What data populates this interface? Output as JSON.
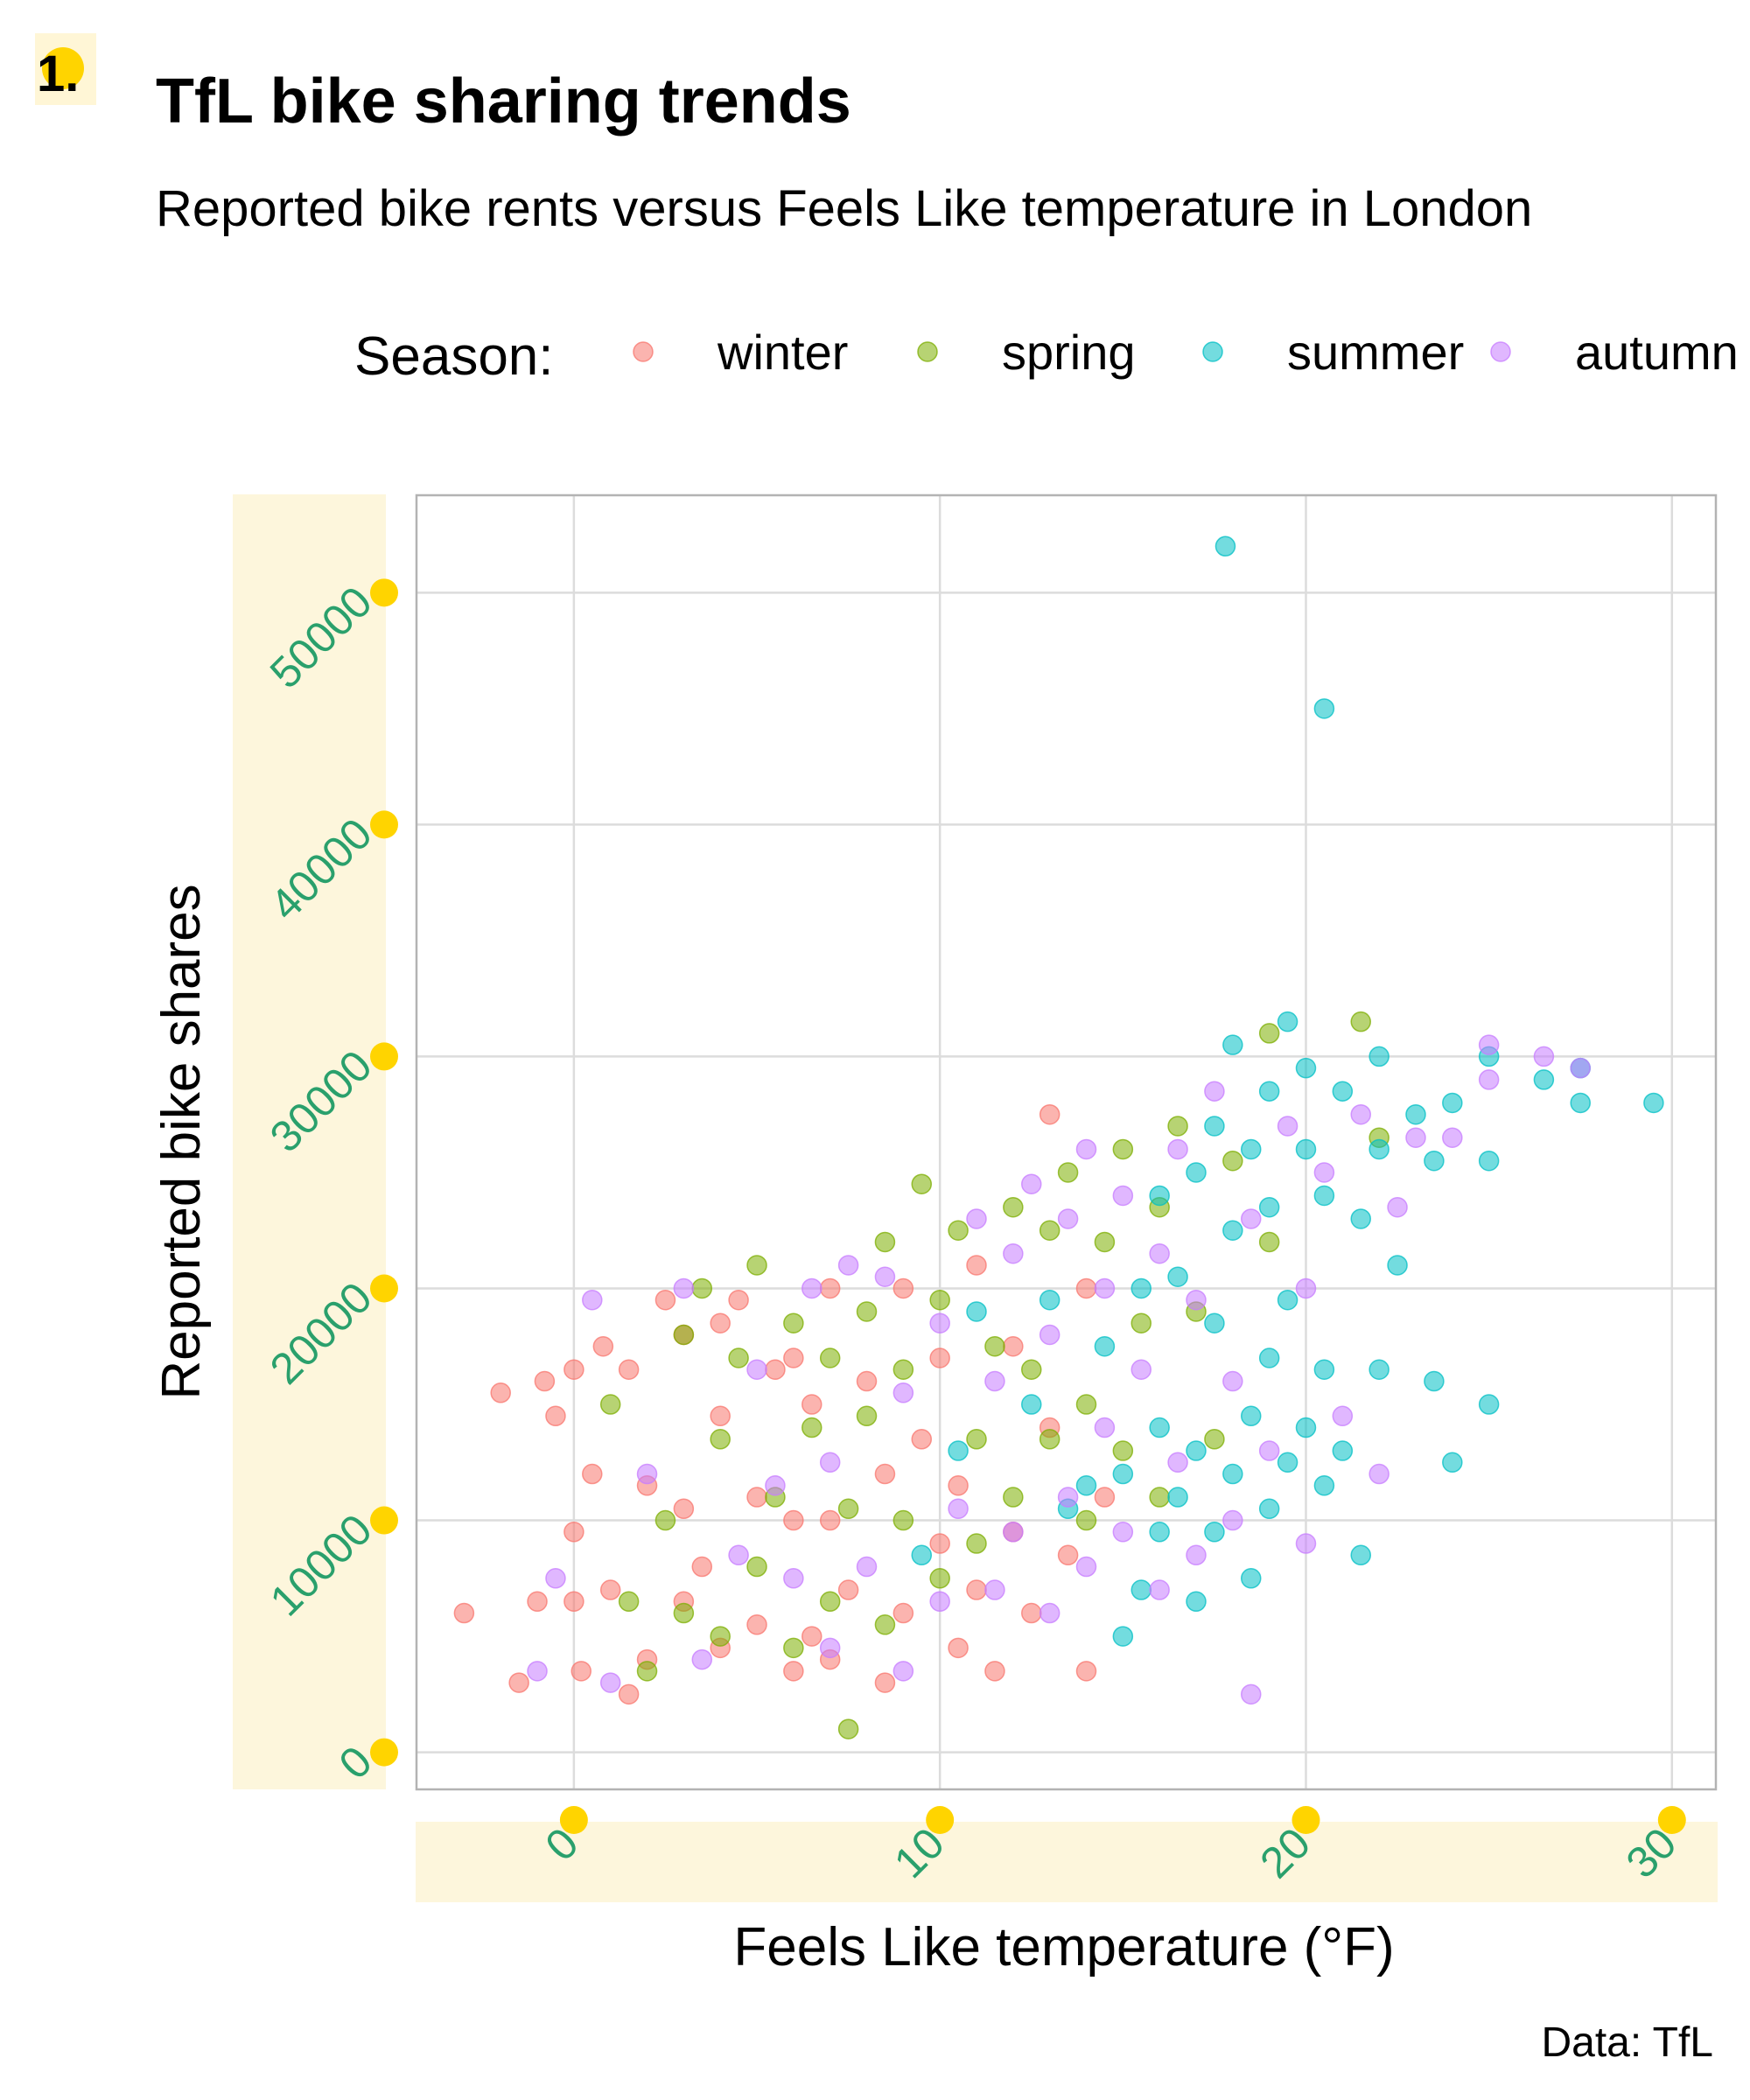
{
  "badge": "1.",
  "chart_data": {
    "type": "scatter",
    "title": "TfL bike sharing trends",
    "subtitle": "Reported bike rents versus Feels Like temperature in London",
    "xlabel": "Feels Like temperature (°F)",
    "ylabel": "Reported bike shares",
    "caption": "Data: TfL",
    "xlim": [
      -4.3,
      31.2
    ],
    "ylim": [
      -1600,
      54200
    ],
    "x_ticks": [
      0,
      10,
      20,
      30
    ],
    "y_ticks": [
      0,
      10000,
      20000,
      30000,
      40000,
      50000
    ],
    "grid": true,
    "legend": {
      "title": "Season:",
      "placement": "top",
      "entries": [
        "winter",
        "spring",
        "summer",
        "autumn"
      ]
    },
    "series": [
      {
        "name": "winter",
        "color": "#f8766d",
        "points": [
          [
            -3,
            6000
          ],
          [
            -2,
            15500
          ],
          [
            -1.5,
            3000
          ],
          [
            -1,
            6500
          ],
          [
            -0.8,
            16000
          ],
          [
            -0.5,
            14500
          ],
          [
            0,
            9500
          ],
          [
            0,
            6500
          ],
          [
            0,
            16500
          ],
          [
            0.2,
            3500
          ],
          [
            0.5,
            12000
          ],
          [
            0.8,
            17500
          ],
          [
            1,
            7000
          ],
          [
            1.5,
            2500
          ],
          [
            1.5,
            16500
          ],
          [
            2,
            4000
          ],
          [
            2,
            11500
          ],
          [
            2.5,
            19500
          ],
          [
            3,
            6500
          ],
          [
            3,
            10500
          ],
          [
            3,
            18000
          ],
          [
            3.5,
            8000
          ],
          [
            4,
            4500
          ],
          [
            4,
            14500
          ],
          [
            4,
            18500
          ],
          [
            4.5,
            19500
          ],
          [
            5,
            5500
          ],
          [
            5,
            11000
          ],
          [
            5.5,
            16500
          ],
          [
            6,
            3500
          ],
          [
            6,
            10000
          ],
          [
            6,
            17000
          ],
          [
            6.5,
            5000
          ],
          [
            6.5,
            15000
          ],
          [
            7,
            4000
          ],
          [
            7,
            10000
          ],
          [
            7,
            20000
          ],
          [
            7.5,
            7000
          ],
          [
            8,
            16000
          ],
          [
            8.5,
            3000
          ],
          [
            8.5,
            12000
          ],
          [
            9,
            6000
          ],
          [
            9,
            20000
          ],
          [
            9.5,
            13500
          ],
          [
            10,
            9000
          ],
          [
            10,
            17000
          ],
          [
            10.5,
            4500
          ],
          [
            10.5,
            11500
          ],
          [
            11,
            7000
          ],
          [
            11,
            21000
          ],
          [
            11.5,
            3500
          ],
          [
            12,
            9500
          ],
          [
            12,
            17500
          ],
          [
            12.5,
            6000
          ],
          [
            13,
            27500
          ],
          [
            13,
            14000
          ],
          [
            13.5,
            8500
          ],
          [
            14,
            20000
          ],
          [
            14,
            3500
          ],
          [
            14.5,
            11000
          ]
        ]
      },
      {
        "name": "spring",
        "color": "#7cae00",
        "points": [
          [
            1,
            15000
          ],
          [
            1.5,
            6500
          ],
          [
            2,
            3500
          ],
          [
            2.5,
            10000
          ],
          [
            3,
            6000
          ],
          [
            3,
            18000
          ],
          [
            3.5,
            20000
          ],
          [
            4,
            5000
          ],
          [
            4,
            13500
          ],
          [
            4.5,
            17000
          ],
          [
            5,
            8000
          ],
          [
            5,
            21000
          ],
          [
            5.5,
            11000
          ],
          [
            6,
            4500
          ],
          [
            6,
            18500
          ],
          [
            6.5,
            14000
          ],
          [
            7,
            6500
          ],
          [
            7,
            17000
          ],
          [
            7.5,
            1000
          ],
          [
            7.5,
            10500
          ],
          [
            8,
            14500
          ],
          [
            8,
            19000
          ],
          [
            8.5,
            5500
          ],
          [
            8.5,
            22000
          ],
          [
            9,
            10000
          ],
          [
            9,
            16500
          ],
          [
            9.5,
            24500
          ],
          [
            10,
            7500
          ],
          [
            10,
            19500
          ],
          [
            10.5,
            22500
          ],
          [
            11,
            13500
          ],
          [
            11,
            9000
          ],
          [
            11.5,
            17500
          ],
          [
            12,
            23500
          ],
          [
            12,
            11000
          ],
          [
            12.5,
            16500
          ],
          [
            13,
            22500
          ],
          [
            13,
            13500
          ],
          [
            13.5,
            25000
          ],
          [
            14,
            10000
          ],
          [
            14,
            15000
          ],
          [
            14.5,
            22000
          ],
          [
            15,
            26000
          ],
          [
            15,
            13000
          ],
          [
            15.5,
            18500
          ],
          [
            16,
            23500
          ],
          [
            16,
            11000
          ],
          [
            16.5,
            27000
          ],
          [
            17,
            19000
          ],
          [
            17.5,
            13500
          ],
          [
            18,
            25500
          ],
          [
            19,
            31000
          ],
          [
            19,
            22000
          ],
          [
            21.5,
            31500
          ],
          [
            22,
            26500
          ]
        ]
      },
      {
        "name": "summer",
        "color": "#00bfc4",
        "points": [
          [
            9.5,
            8500
          ],
          [
            10.5,
            13000
          ],
          [
            11,
            19000
          ],
          [
            12.5,
            15000
          ],
          [
            13,
            19500
          ],
          [
            13.5,
            10500
          ],
          [
            14,
            11500
          ],
          [
            14.5,
            17500
          ],
          [
            15,
            5000
          ],
          [
            15,
            12000
          ],
          [
            15.5,
            7000
          ],
          [
            15.5,
            20000
          ],
          [
            16,
            9500
          ],
          [
            16,
            14000
          ],
          [
            16,
            24000
          ],
          [
            16.5,
            11000
          ],
          [
            16.5,
            20500
          ],
          [
            17,
            6500
          ],
          [
            17,
            13000
          ],
          [
            17,
            25000
          ],
          [
            17.5,
            9500
          ],
          [
            17.5,
            18500
          ],
          [
            17.5,
            27000
          ],
          [
            17.8,
            52000
          ],
          [
            18,
            12000
          ],
          [
            18,
            22500
          ],
          [
            18,
            30500
          ],
          [
            18.5,
            7500
          ],
          [
            18.5,
            14500
          ],
          [
            18.5,
            26000
          ],
          [
            19,
            10500
          ],
          [
            19,
            17000
          ],
          [
            19,
            23500
          ],
          [
            19,
            28500
          ],
          [
            19.5,
            12500
          ],
          [
            19.5,
            19500
          ],
          [
            19.5,
            31500
          ],
          [
            20,
            14000
          ],
          [
            20,
            26000
          ],
          [
            20,
            29500
          ],
          [
            20.5,
            45000
          ],
          [
            20.5,
            11500
          ],
          [
            20.5,
            16500
          ],
          [
            20.5,
            24000
          ],
          [
            21,
            13000
          ],
          [
            21,
            28500
          ],
          [
            21.5,
            8500
          ],
          [
            21.5,
            23000
          ],
          [
            22,
            16500
          ],
          [
            22,
            26000
          ],
          [
            22,
            30000
          ],
          [
            22.5,
            21000
          ],
          [
            23,
            27500
          ],
          [
            23.5,
            16000
          ],
          [
            23.5,
            25500
          ],
          [
            24,
            12500
          ],
          [
            24,
            28000
          ],
          [
            25,
            15000
          ],
          [
            25,
            25500
          ],
          [
            25,
            30000
          ],
          [
            26.5,
            29000
          ],
          [
            27.5,
            28000
          ],
          [
            27.5,
            29500
          ],
          [
            29.5,
            28000
          ]
        ]
      },
      {
        "name": "autumn",
        "color": "#c77cff",
        "points": [
          [
            -1,
            3500
          ],
          [
            -0.5,
            7500
          ],
          [
            0.5,
            19500
          ],
          [
            1,
            3000
          ],
          [
            2,
            12000
          ],
          [
            3,
            20000
          ],
          [
            3.5,
            4000
          ],
          [
            4.5,
            8500
          ],
          [
            5,
            16500
          ],
          [
            5.5,
            11500
          ],
          [
            6,
            7500
          ],
          [
            6.5,
            20000
          ],
          [
            7,
            4500
          ],
          [
            7,
            12500
          ],
          [
            7.5,
            21000
          ],
          [
            8,
            8000
          ],
          [
            8.5,
            20500
          ],
          [
            9,
            3500
          ],
          [
            9,
            15500
          ],
          [
            10,
            6500
          ],
          [
            10,
            18500
          ],
          [
            10.5,
            10500
          ],
          [
            11,
            23000
          ],
          [
            11.5,
            7000
          ],
          [
            11.5,
            16000
          ],
          [
            12,
            9500
          ],
          [
            12,
            21500
          ],
          [
            12.5,
            24500
          ],
          [
            13,
            6000
          ],
          [
            13,
            18000
          ],
          [
            13.5,
            11000
          ],
          [
            13.5,
            23000
          ],
          [
            14,
            8000
          ],
          [
            14,
            26000
          ],
          [
            14.5,
            14000
          ],
          [
            14.5,
            20000
          ],
          [
            15,
            9500
          ],
          [
            15,
            24000
          ],
          [
            15.5,
            16500
          ],
          [
            16,
            7000
          ],
          [
            16,
            21500
          ],
          [
            16.5,
            12500
          ],
          [
            16.5,
            26000
          ],
          [
            17,
            8500
          ],
          [
            17,
            19500
          ],
          [
            17.5,
            28500
          ],
          [
            18,
            10000
          ],
          [
            18,
            16000
          ],
          [
            18.5,
            2500
          ],
          [
            18.5,
            23000
          ],
          [
            19,
            13000
          ],
          [
            19.5,
            27000
          ],
          [
            20,
            9000
          ],
          [
            20,
            20000
          ],
          [
            20.5,
            25000
          ],
          [
            21,
            14500
          ],
          [
            21.5,
            27500
          ],
          [
            22,
            12000
          ],
          [
            22.5,
            23500
          ],
          [
            23,
            26500
          ],
          [
            24,
            26500
          ],
          [
            25,
            30500
          ],
          [
            25,
            29000
          ],
          [
            26.5,
            30000
          ],
          [
            27.5,
            29500
          ]
        ]
      }
    ]
  }
}
